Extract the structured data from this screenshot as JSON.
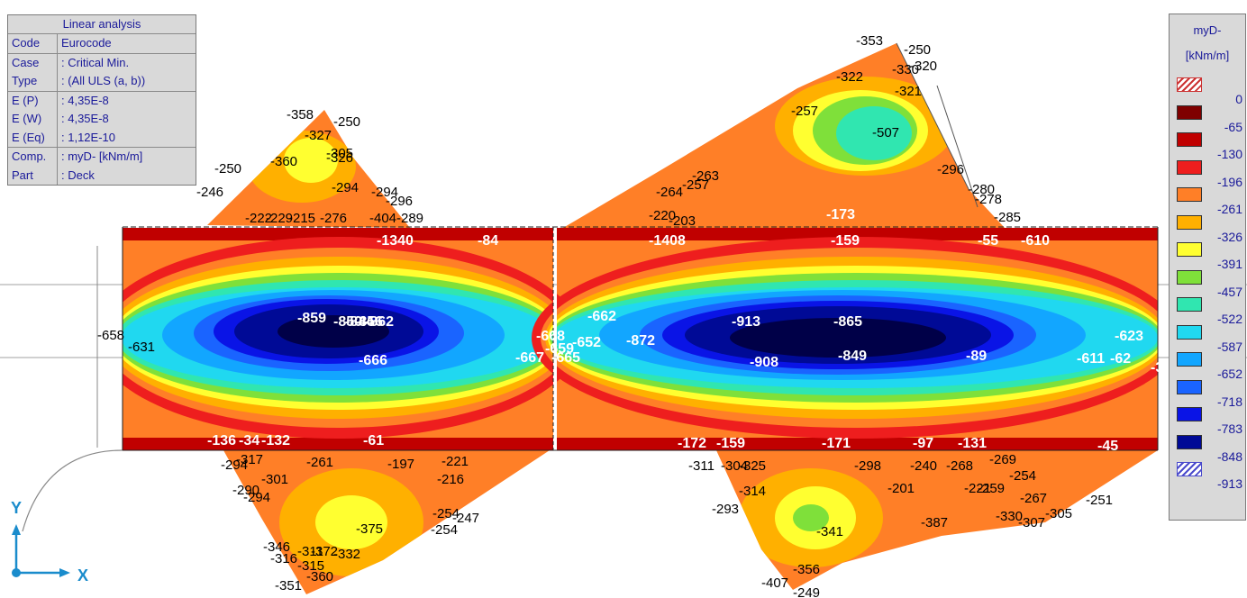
{
  "info_panel": {
    "title": "Linear analysis",
    "rows": [
      {
        "key": "Code",
        "value": "Eurocode"
      },
      {
        "key": "Case",
        "value": ": Critical Min."
      },
      {
        "key": "Type",
        "value": ": (All ULS  (a, b))"
      },
      {
        "key": "E (P)",
        "value": ": 4,35E-8"
      },
      {
        "key": "E (W)",
        "value": ": 4,35E-8"
      },
      {
        "key": "E (Eq)",
        "value": ": 1,12E-10"
      },
      {
        "key": "Comp.",
        "value": ": myD- [kNm/m]"
      },
      {
        "key": "Part",
        "value": ": Deck"
      }
    ]
  },
  "legend": {
    "title": "myD-",
    "unit": "[kNm/m]",
    "levels": [
      {
        "value": "0",
        "color": "#ffffff",
        "hatched": true
      },
      {
        "value": "-65",
        "color": "#7f0000"
      },
      {
        "value": "-130",
        "color": "#c00000"
      },
      {
        "value": "-196",
        "color": "#ee1e1e"
      },
      {
        "value": "-261",
        "color": "#ff7f27"
      },
      {
        "value": "-326",
        "color": "#ffb000"
      },
      {
        "value": "-391",
        "color": "#ffff30"
      },
      {
        "value": "-457",
        "color": "#7fe03a"
      },
      {
        "value": "-522",
        "color": "#30e6b0"
      },
      {
        "value": "-587",
        "color": "#20d8f0"
      },
      {
        "value": "-652",
        "color": "#12a6ff"
      },
      {
        "value": "-718",
        "color": "#1a64ff"
      },
      {
        "value": "-783",
        "color": "#0a14e6"
      },
      {
        "value": "-848",
        "color": "#000a96"
      },
      {
        "value": "-913",
        "color": "#000048",
        "hatched_end": true
      }
    ]
  },
  "axes": {
    "y": "Y",
    "x": "X"
  },
  "labels_white": [
    "-1340",
    "-84",
    "-859",
    "-850",
    "-844",
    "-856",
    "-862",
    "-666",
    "-668",
    "-659",
    "-652",
    "-667",
    "-665",
    "-662",
    "-872",
    "-913",
    "-865",
    "-908",
    "-849",
    "-89",
    "-159",
    "-173",
    "-1408",
    "-55",
    "-610",
    "-623",
    "-611",
    "-62",
    "-34",
    "-136",
    "-34",
    "-132",
    "-61",
    "-172",
    "-159",
    "-171",
    "-97",
    "-131",
    "-45"
  ],
  "labels_black": [
    "-358",
    "-250",
    "-327",
    "-305",
    "-360",
    "-326",
    "-294",
    "-294",
    "-296",
    "-250",
    "-246",
    "-222",
    "-229",
    "-215",
    "-276",
    "-404",
    "-289",
    "-353",
    "-250",
    "-322",
    "-330",
    "-320",
    "-321",
    "-257",
    "-507",
    "-296",
    "-264",
    "-257",
    "-263",
    "-280",
    "-278",
    "-220",
    "-203",
    "-285",
    "-658",
    "-631",
    "-294",
    "-317",
    "-261",
    "-197",
    "-221",
    "-216",
    "-301",
    "-290",
    "-294",
    "-375",
    "-254",
    "-247",
    "-254",
    "-346",
    "-316",
    "-311",
    "-372",
    "-332",
    "-315",
    "-360",
    "-351",
    "-311",
    "-304",
    "-325",
    "-314",
    "-293",
    "-298",
    "-201",
    "-240",
    "-268",
    "-269",
    "-254",
    "-221",
    "-259",
    "-267",
    "-305",
    "-307",
    "-330",
    "-251",
    "-341",
    "-407",
    "-249",
    "-356",
    "-387",
    "-253"
  ]
}
